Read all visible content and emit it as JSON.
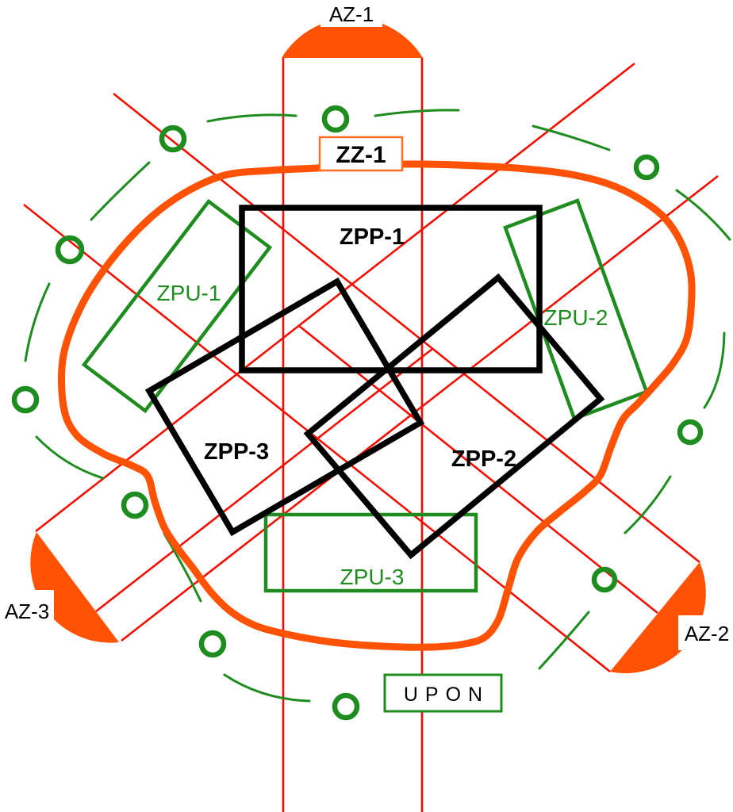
{
  "diagram": {
    "title": "defense-scheme",
    "markers": {
      "az1": {
        "label": "AZ-1"
      },
      "az2": {
        "label": "AZ-2"
      },
      "az3": {
        "label": "AZ-3"
      }
    },
    "boxes": {
      "zz1": {
        "label": "ZZ-1"
      },
      "upon": {
        "label": "UPON"
      }
    },
    "zones_black": [
      {
        "id": "zpp1",
        "label": "ZPP-1"
      },
      {
        "id": "zpp2",
        "label": "ZPP-2"
      },
      {
        "id": "zpp3",
        "label": "ZPP-3"
      }
    ],
    "zones_green": [
      {
        "id": "zpu1",
        "label": "ZPU-1"
      },
      {
        "id": "zpu2",
        "label": "ZPU-2"
      },
      {
        "id": "zpu3",
        "label": "ZPU-3"
      }
    ],
    "colors": {
      "orange": "#ff5205",
      "orange_light": "#ff6d1f",
      "red": "#f50d00",
      "green": "#1f8c1f",
      "black": "#000000",
      "white": "#ffffff"
    }
  }
}
